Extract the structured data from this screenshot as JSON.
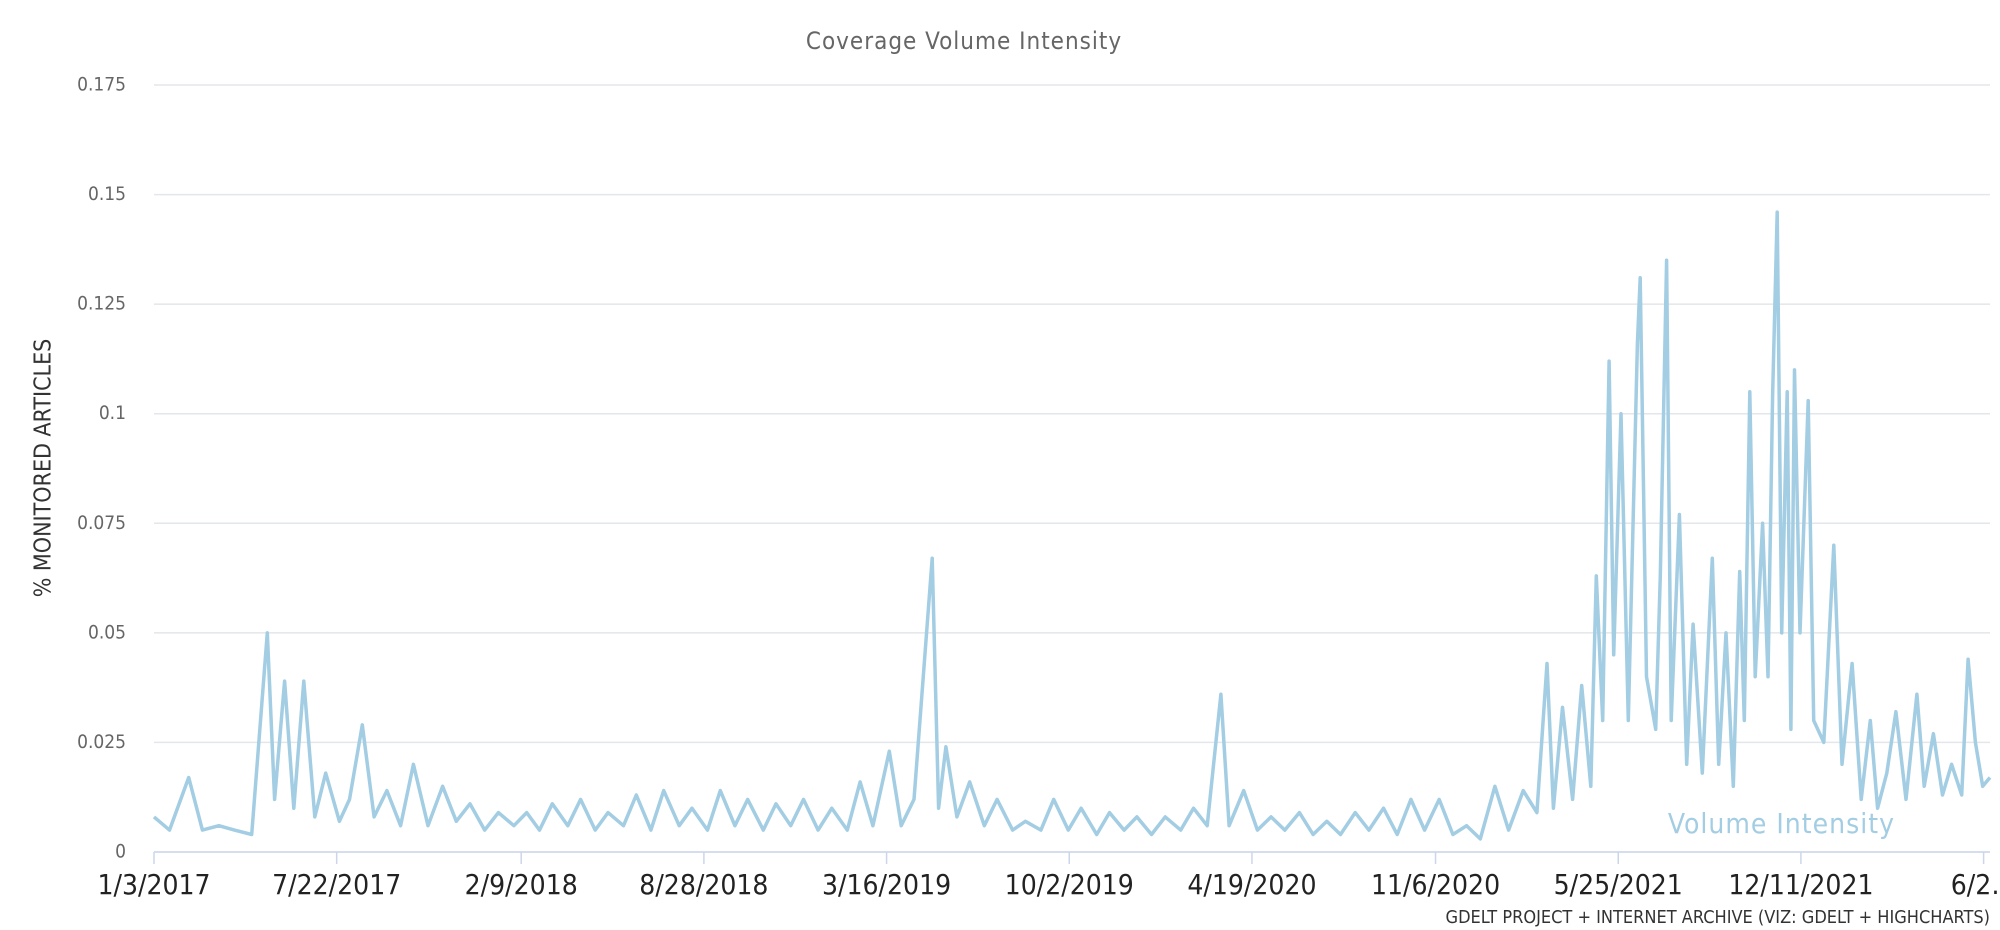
{
  "chart_data": {
    "type": "line",
    "title": "Coverage Volume Intensity",
    "y_label": "% MONITORED ARTICLES",
    "annotation": "Volume Intensity",
    "credit": "GDELT PROJECT + INTERNET ARCHIVE (VIZ: GDELT + HIGHCHARTS)",
    "xlim": [
      "1/3/2017",
      "7/6/2022"
    ],
    "xticks": [
      "1/3/2017",
      "7/22/2017",
      "2/9/2018",
      "8/28/2018",
      "3/16/2019",
      "10/2/2019",
      "4/19/2020",
      "11/6/2020",
      "5/25/2021",
      "12/11/2021",
      {
        "value": "6/29/2022",
        "label": "6/2…"
      }
    ],
    "ylim": [
      0,
      0.175
    ],
    "yticks": [
      0,
      0.025,
      0.05,
      0.075,
      0.1,
      0.125,
      0.15,
      0.175
    ],
    "grid": true,
    "x": [
      "1/3/2017",
      "1/20/2017",
      "2/10/2017",
      "2/25/2017",
      "3/15/2017",
      "4/1/2017",
      "4/20/2017",
      "5/7/2017",
      "5/15/2017",
      "5/26/2017",
      "6/5/2017",
      "6/16/2017",
      "6/28/2017",
      "7/10/2017",
      "7/25/2017",
      "8/5/2017",
      "8/19/2017",
      "9/1/2017",
      "9/15/2017",
      "9/30/2017",
      "10/14/2017",
      "10/30/2017",
      "11/15/2017",
      "11/30/2017",
      "12/15/2017",
      "12/31/2017",
      "1/15/2018",
      "2/1/2018",
      "2/15/2018",
      "3/1/2018",
      "3/15/2018",
      "4/1/2018",
      "4/15/2018",
      "5/1/2018",
      "5/15/2018",
      "6/1/2018",
      "6/15/2018",
      "7/1/2018",
      "7/15/2018",
      "8/1/2018",
      "8/15/2018",
      "9/1/2018",
      "9/15/2018",
      "10/1/2018",
      "10/15/2018",
      "11/1/2018",
      "11/15/2018",
      "12/1/2018",
      "12/15/2018",
      "12/31/2018",
      "1/15/2019",
      "2/1/2019",
      "2/15/2019",
      "3/1/2019",
      "3/19/2019",
      "4/1/2019",
      "4/15/2019",
      "5/5/2019",
      "5/12/2019",
      "5/20/2019",
      "6/1/2019",
      "6/15/2019",
      "7/1/2019",
      "7/15/2019",
      "8/1/2019",
      "8/15/2019",
      "9/1/2019",
      "9/15/2019",
      "10/1/2019",
      "10/15/2019",
      "11/1/2019",
      "11/15/2019",
      "12/1/2019",
      "12/15/2019",
      "12/31/2019",
      "1/15/2020",
      "2/1/2020",
      "2/15/2020",
      "3/1/2020",
      "3/16/2020",
      "3/25/2020",
      "4/10/2020",
      "4/25/2020",
      "5/10/2020",
      "5/25/2020",
      "6/10/2020",
      "6/25/2020",
      "7/10/2020",
      "7/25/2020",
      "8/10/2020",
      "8/25/2020",
      "9/10/2020",
      "9/25/2020",
      "10/10/2020",
      "10/25/2020",
      "11/10/2020",
      "11/25/2020",
      "12/10/2020",
      "12/25/2020",
      "1/10/2021",
      "1/25/2021",
      "2/10/2021",
      "2/25/2021",
      "3/8/2021",
      "3/15/2021",
      "3/25/2021",
      "4/5/2021",
      "4/15/2021",
      "4/25/2021",
      "5/1/2021",
      "5/8/2021",
      "5/15/2021",
      "5/20/2021",
      "5/28/2021",
      "6/5/2021",
      "6/15/2021",
      "6/18/2021",
      "6/25/2021",
      "7/5/2021",
      "7/10/2021",
      "7/17/2021",
      "7/22/2021",
      "7/31/2021",
      "8/8/2021",
      "8/15/2021",
      "8/25/2021",
      "9/5/2021",
      "9/12/2021",
      "9/20/2021",
      "9/28/2021",
      "10/5/2021",
      "10/10/2021",
      "10/16/2021",
      "10/22/2021",
      "10/30/2021",
      "11/5/2021",
      "11/10/2021",
      "11/15/2021",
      "11/20/2021",
      "11/26/2021",
      "11/30/2021",
      "12/4/2021",
      "12/10/2021",
      "12/19/2021",
      "12/25/2021",
      "1/5/2022",
      "1/16/2022",
      "1/25/2022",
      "2/5/2022",
      "2/15/2022",
      "2/25/2022",
      "3/5/2022",
      "3/15/2022",
      "3/25/2022",
      "4/5/2022",
      "4/17/2022",
      "4/25/2022",
      "5/5/2022",
      "5/15/2022",
      "5/25/2022",
      "6/5/2022",
      "6/12/2022",
      "6/20/2022",
      "6/28/2022",
      "7/6/2022"
    ],
    "series": [
      {
        "name": "Volume Intensity",
        "color": "#a3cde3",
        "values": [
          0.008,
          0.005,
          0.017,
          0.005,
          0.006,
          0.005,
          0.004,
          0.05,
          0.012,
          0.039,
          0.01,
          0.039,
          0.008,
          0.018,
          0.007,
          0.012,
          0.029,
          0.008,
          0.014,
          0.006,
          0.02,
          0.006,
          0.015,
          0.007,
          0.011,
          0.005,
          0.009,
          0.006,
          0.009,
          0.005,
          0.011,
          0.006,
          0.012,
          0.005,
          0.009,
          0.006,
          0.013,
          0.005,
          0.014,
          0.006,
          0.01,
          0.005,
          0.014,
          0.006,
          0.012,
          0.005,
          0.011,
          0.006,
          0.012,
          0.005,
          0.01,
          0.005,
          0.016,
          0.006,
          0.023,
          0.006,
          0.012,
          0.067,
          0.01,
          0.024,
          0.008,
          0.016,
          0.006,
          0.012,
          0.005,
          0.007,
          0.005,
          0.012,
          0.005,
          0.01,
          0.004,
          0.009,
          0.005,
          0.008,
          0.004,
          0.008,
          0.005,
          0.01,
          0.006,
          0.036,
          0.006,
          0.014,
          0.005,
          0.008,
          0.005,
          0.009,
          0.004,
          0.007,
          0.004,
          0.009,
          0.005,
          0.01,
          0.004,
          0.012,
          0.005,
          0.012,
          0.004,
          0.006,
          0.003,
          0.015,
          0.005,
          0.014,
          0.009,
          0.043,
          0.01,
          0.033,
          0.012,
          0.038,
          0.015,
          0.063,
          0.03,
          0.112,
          0.045,
          0.1,
          0.03,
          0.116,
          0.131,
          0.04,
          0.028,
          0.063,
          0.135,
          0.03,
          0.077,
          0.02,
          0.052,
          0.018,
          0.067,
          0.02,
          0.05,
          0.015,
          0.064,
          0.03,
          0.105,
          0.04,
          0.075,
          0.04,
          0.104,
          0.146,
          0.05,
          0.105,
          0.028,
          0.11,
          0.05,
          0.103,
          0.03,
          0.025,
          0.07,
          0.02,
          0.043,
          0.012,
          0.03,
          0.01,
          0.018,
          0.032,
          0.012,
          0.036,
          0.015,
          0.027,
          0.013,
          0.02,
          0.013,
          0.044,
          0.025,
          0.015,
          0.017
        ]
      }
    ]
  }
}
